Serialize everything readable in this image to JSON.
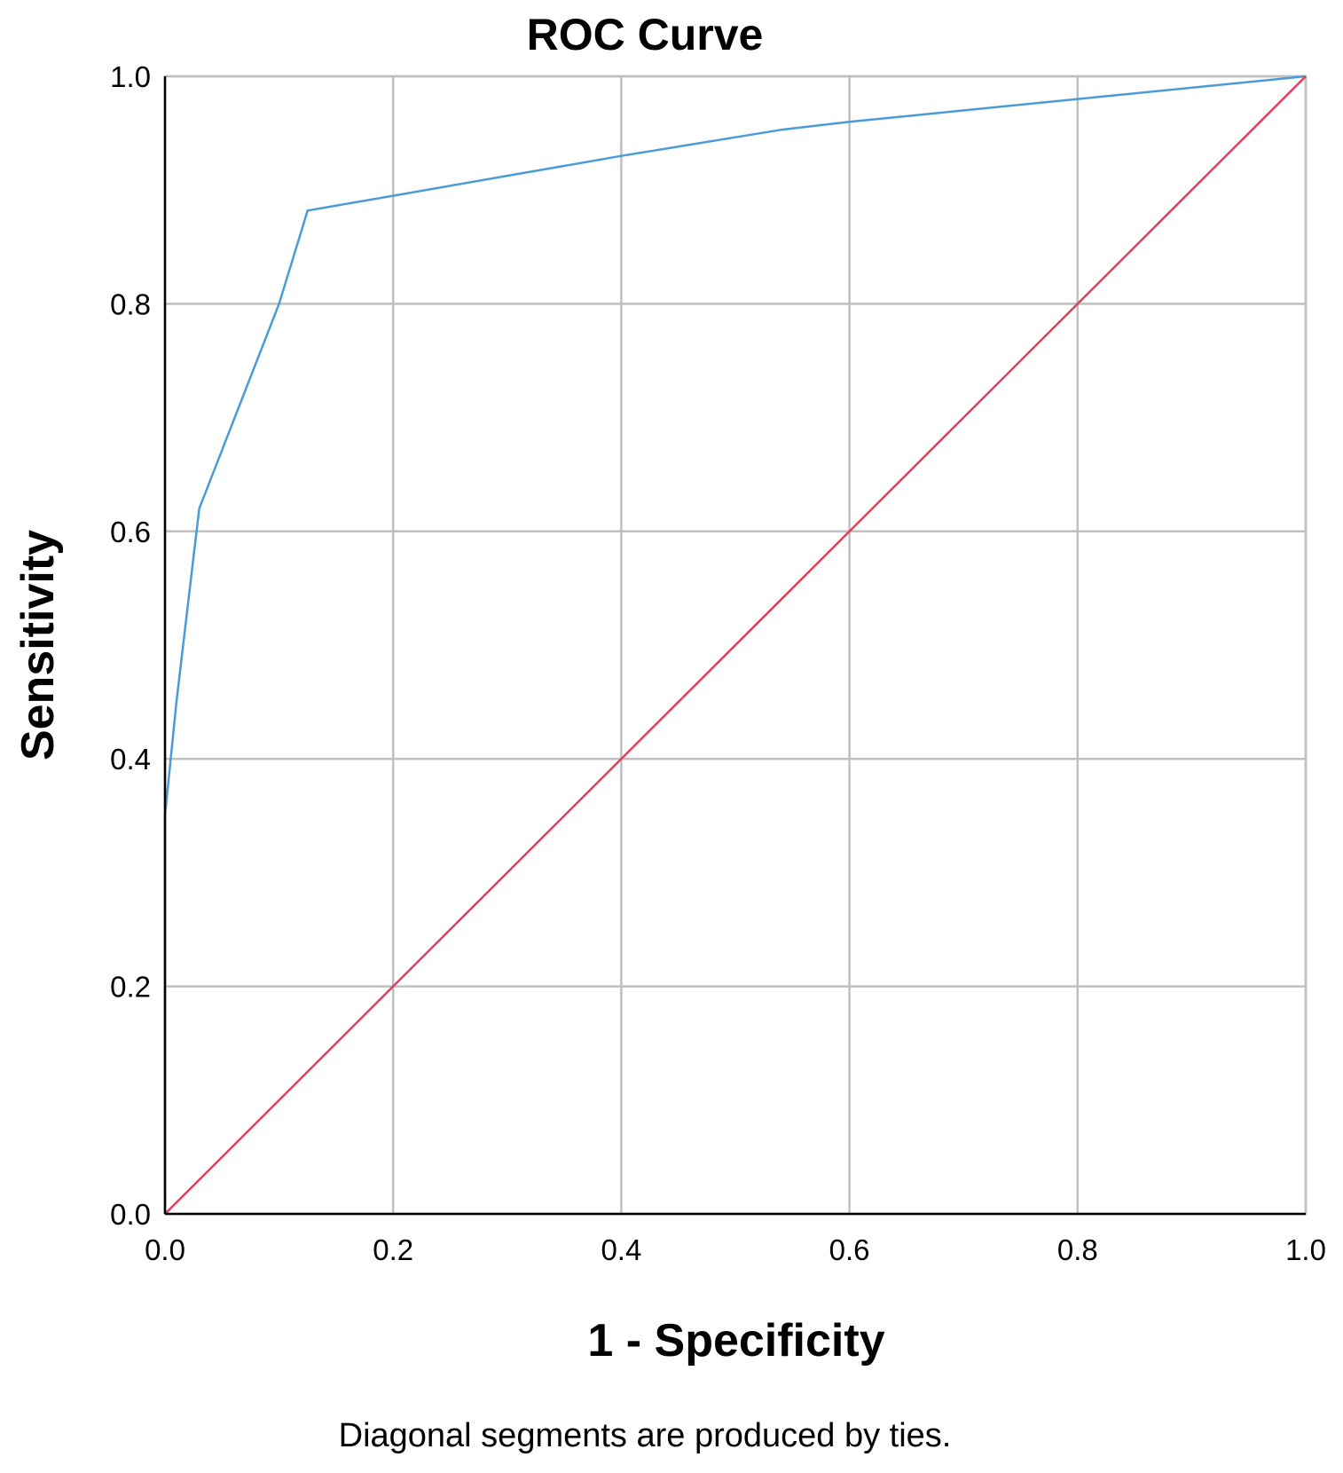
{
  "chart_data": {
    "type": "line",
    "title": "ROC Curve",
    "xlabel": "1 - Specificity",
    "ylabel": "Sensitivity",
    "xlim": [
      0.0,
      1.0
    ],
    "ylim": [
      0.0,
      1.0
    ],
    "x_ticks": [
      "0.0",
      "0.2",
      "0.4",
      "0.6",
      "0.8",
      "1.0"
    ],
    "y_ticks": [
      "0.0",
      "0.2",
      "0.4",
      "0.6",
      "0.8",
      "1.0"
    ],
    "grid": true,
    "series": [
      {
        "color": "#4a9bd8",
        "points": [
          [
            0.0,
            0.0
          ],
          [
            0.0,
            0.1
          ],
          [
            0.0,
            0.2
          ],
          [
            0.0,
            0.35
          ],
          [
            0.01,
            0.45
          ],
          [
            0.03,
            0.62
          ],
          [
            0.1,
            0.8
          ],
          [
            0.125,
            0.882
          ],
          [
            0.2,
            0.895
          ],
          [
            0.4,
            0.93
          ],
          [
            0.54,
            0.953
          ],
          [
            0.6,
            0.96
          ],
          [
            0.8,
            0.98
          ],
          [
            1.0,
            1.0
          ]
        ]
      },
      {
        "color": "#e0405a",
        "points": [
          [
            0.0,
            0.0
          ],
          [
            1.0,
            1.0
          ]
        ]
      }
    ],
    "footnote": "Diagonal segments are produced by ties."
  }
}
